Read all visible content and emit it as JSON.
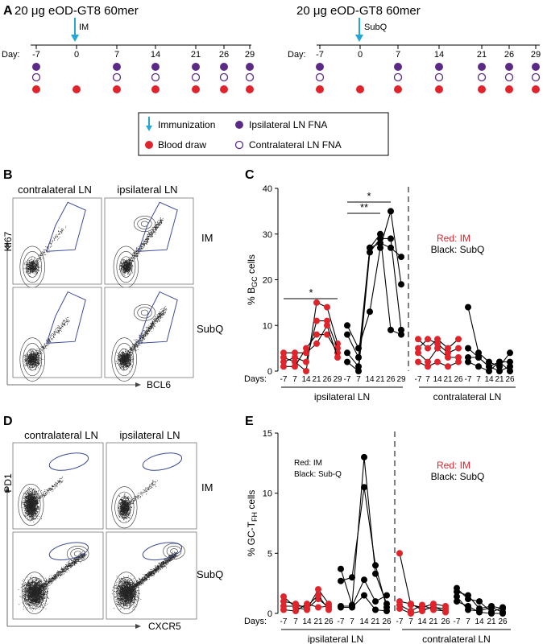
{
  "panel_a": {
    "letter": "A",
    "im": {
      "title": "20 μg eOD-GT8 60mer",
      "route": "IM",
      "day_label": "Day:",
      "days": [
        "-7",
        "0",
        "7",
        "14",
        "21",
        "26",
        "29"
      ],
      "ipsi": [
        true,
        false,
        true,
        true,
        true,
        true,
        true
      ],
      "contra": [
        true,
        false,
        true,
        true,
        true,
        true,
        true
      ],
      "blood": [
        true,
        true,
        true,
        true,
        true,
        true,
        true
      ]
    },
    "subq": {
      "title": "20 μg eOD-GT8 60mer",
      "route": "SubQ",
      "day_label": "Day:",
      "days": [
        "-7",
        "0",
        "7",
        "14",
        "21",
        "26",
        "29"
      ],
      "ipsi": [
        true,
        false,
        true,
        true,
        true,
        true,
        true
      ],
      "contra": [
        true,
        false,
        true,
        true,
        true,
        true,
        true
      ],
      "blood": [
        true,
        true,
        true,
        true,
        true,
        true,
        true
      ]
    },
    "legend": {
      "immunization": "Immunization",
      "blood": "Blood draw",
      "ipsi": "Ipsilateral LN FNA",
      "contra": "Contralateral LN FNA"
    }
  },
  "panel_b": {
    "letter": "B",
    "col1": "contralateral LN",
    "col2": "ipsilateral LN",
    "row1": "IM",
    "row2": "SubQ",
    "ylabel": "KI67",
    "xlabel": "BCL6"
  },
  "panel_d": {
    "letter": "D",
    "col1": "contralateral LN",
    "col2": "ipsilateral LN",
    "row1": "IM",
    "row2": "SubQ",
    "ylabel": "PD1",
    "xlabel": "CXCR5"
  },
  "colors": {
    "red": "#e0242c",
    "black": "#000000",
    "purple": "#5b2a86",
    "cyan": "#22a8d8",
    "gate": "#3b4a9a"
  },
  "chart_data": [
    {
      "panel": "C",
      "type": "line",
      "ylabel": "% B_GC cells",
      "ylabel_main": "% B",
      "ylabel_sub": "GC",
      "ylabel_tail": " cells",
      "ylim": [
        0,
        40
      ],
      "yticks": [
        "0",
        "10",
        "20",
        "30",
        "40"
      ],
      "days_label": "Days:",
      "groups": [
        {
          "label": "ipsilateral LN",
          "categories": [
            "-7",
            "7",
            "14",
            "21",
            "26",
            "29"
          ]
        },
        {
          "label": "contralateral LN",
          "categories": [
            "-7",
            "7",
            "14",
            "21",
            "26"
          ]
        }
      ],
      "legend": {
        "red": "Red: IM",
        "black": "Black: SubQ"
      },
      "significance": [
        {
          "text": "*",
          "series": "IM"
        },
        {
          "text": "**",
          "series": "SubQ"
        },
        {
          "text": "*",
          "series": "SubQ"
        }
      ],
      "series": [
        {
          "group": "ipsilateral",
          "color": "red",
          "values": [
            3,
            2,
            0,
            15,
            14,
            6
          ]
        },
        {
          "group": "ipsilateral",
          "color": "red",
          "values": [
            2,
            3,
            2,
            11,
            11,
            5
          ]
        },
        {
          "group": "ipsilateral",
          "color": "red",
          "values": [
            1,
            1,
            5,
            8,
            8,
            4
          ]
        },
        {
          "group": "ipsilateral",
          "color": "red",
          "values": [
            4,
            4,
            4,
            6,
            10,
            3
          ]
        },
        {
          "group": "ipsilateral",
          "color": "black",
          "values": [
            10,
            5,
            13,
            27,
            35,
            19
          ]
        },
        {
          "group": "ipsilateral",
          "color": "black",
          "values": [
            8,
            3,
            27,
            28,
            27,
            25
          ]
        },
        {
          "group": "ipsilateral",
          "color": "black",
          "values": [
            4,
            1,
            27,
            30,
            9,
            8
          ]
        },
        {
          "group": "ipsilateral",
          "color": "black",
          "values": [
            2,
            0,
            26,
            29,
            29,
            9
          ]
        },
        {
          "group": "contralateral",
          "color": "red",
          "values": [
            7,
            5,
            7,
            5,
            7
          ]
        },
        {
          "group": "contralateral",
          "color": "red",
          "values": [
            5,
            7,
            6,
            4,
            5
          ]
        },
        {
          "group": "contralateral",
          "color": "red",
          "values": [
            4,
            2,
            5,
            3,
            3
          ]
        },
        {
          "group": "contralateral",
          "color": "red",
          "values": [
            2,
            1,
            2,
            1,
            2
          ]
        },
        {
          "group": "contralateral",
          "color": "black",
          "values": [
            14,
            4,
            2,
            1,
            4
          ]
        },
        {
          "group": "contralateral",
          "color": "black",
          "values": [
            5,
            3,
            1,
            2,
            2
          ]
        },
        {
          "group": "contralateral",
          "color": "black",
          "values": [
            3,
            3,
            1,
            0,
            1
          ]
        },
        {
          "group": "contralateral",
          "color": "black",
          "values": [
            2,
            1,
            0,
            2,
            0
          ]
        }
      ]
    },
    {
      "panel": "E",
      "type": "line",
      "ylabel": "% GC-T_FH cells",
      "ylabel_main": "% GC-T",
      "ylabel_sub": "FH",
      "ylabel_tail": " cells",
      "ylim": [
        0,
        15
      ],
      "yticks": [
        "0",
        "5",
        "10",
        "15"
      ],
      "days_label": "Days:",
      "groups": [
        {
          "label": "ipsilateral LN",
          "categories": [
            "-7",
            "7",
            "14",
            "21",
            "26",
            "-7",
            "7",
            "14",
            "21",
            "26"
          ]
        },
        {
          "label": "contralateral LN",
          "categories": [
            "-7",
            "7",
            "14",
            "21",
            "26",
            "-7",
            "7",
            "14",
            "21",
            "26"
          ]
        }
      ],
      "legend_left": {
        "red": "Red: IM",
        "black": "Black: Sub-Q"
      },
      "legend": {
        "red": "Red: IM",
        "black": "Black: SubQ"
      },
      "series": [
        {
          "group": "ipsilateral",
          "color": "red",
          "values": [
            1.4,
            0.5,
            0.3,
            2.0,
            0.8
          ]
        },
        {
          "group": "ipsilateral",
          "color": "red",
          "values": [
            1.0,
            0.8,
            0.4,
            1.2,
            0.5
          ]
        },
        {
          "group": "ipsilateral",
          "color": "red",
          "values": [
            0.6,
            0.6,
            0.6,
            1.5,
            0.3
          ]
        },
        {
          "group": "ipsilateral",
          "color": "red",
          "values": [
            0.3,
            0.2,
            0.8,
            0.5,
            0.6
          ]
        },
        {
          "group": "ipsilateral",
          "color": "black",
          "values": [
            3.7,
            0.7,
            13.0,
            3.3,
            0.8
          ]
        },
        {
          "group": "ipsilateral",
          "color": "black",
          "values": [
            2.7,
            3.0,
            10.5,
            4.0,
            0.5
          ]
        },
        {
          "group": "ipsilateral",
          "color": "black",
          "values": [
            0.6,
            0.6,
            2.8,
            1.0,
            1.5
          ]
        },
        {
          "group": "ipsilateral",
          "color": "black",
          "values": [
            0.5,
            0.5,
            1.5,
            0.3,
            0.2
          ]
        },
        {
          "group": "contralateral",
          "color": "red",
          "values": [
            5.0,
            0.7,
            0.5,
            0.8,
            0.6
          ]
        },
        {
          "group": "contralateral",
          "color": "red",
          "values": [
            1.0,
            0.8,
            0.3,
            0.5,
            0.4
          ]
        },
        {
          "group": "contralateral",
          "color": "red",
          "values": [
            0.7,
            0.2,
            0.7,
            0.3,
            0.2
          ]
        },
        {
          "group": "contralateral",
          "color": "red",
          "values": [
            0.4,
            0.0,
            0.2,
            0.6,
            0.1
          ]
        },
        {
          "group": "contralateral",
          "color": "black",
          "values": [
            2.1,
            1.2,
            1.0,
            0.1,
            0.5
          ]
        },
        {
          "group": "contralateral",
          "color": "black",
          "values": [
            1.8,
            1.5,
            0.4,
            0.6,
            0.4
          ]
        },
        {
          "group": "contralateral",
          "color": "black",
          "values": [
            1.4,
            0.3,
            0.2,
            0.5,
            0.1
          ]
        },
        {
          "group": "contralateral",
          "color": "black",
          "values": [
            1.0,
            0.6,
            0.1,
            0.0,
            0.0
          ]
        }
      ]
    }
  ]
}
